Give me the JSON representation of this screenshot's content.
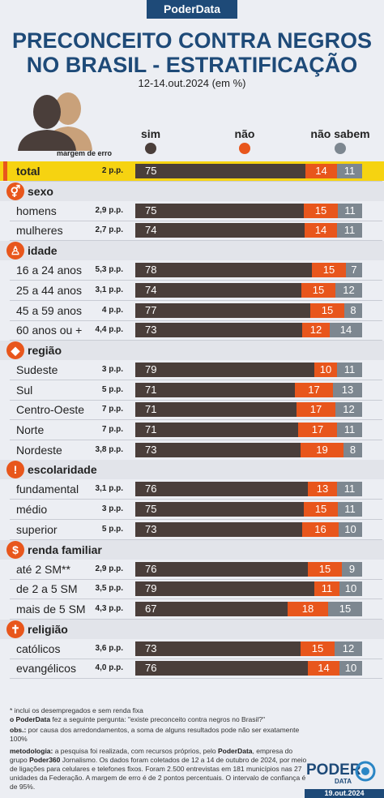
{
  "brand": "PoderData",
  "title_lines": [
    "PRECONCEITO CONTRA NEGROS",
    "NO BRASIL - ESTRATIFICAÇÃO"
  ],
  "subtitle": "12-14.out.2024 (em %)",
  "margin_header": "margem de erro",
  "colors": {
    "sim": "#4a3e3a",
    "nao": "#e8561c",
    "nao_sabem": "#7d8790",
    "navy": "#1e4a78",
    "highlight": "#f6d311"
  },
  "chart_data": {
    "type": "bar",
    "stacked": true,
    "orientation": "horizontal",
    "title": "PRECONCEITO CONTRA NEGROS NO BRASIL - ESTRATIFICAÇÃO",
    "series_names": [
      "sim",
      "não",
      "não sabem"
    ],
    "groups": [
      {
        "name": "",
        "icon": "",
        "rows": [
          {
            "label": "total",
            "margin": "2 p.p.",
            "values": [
              75,
              14,
              11
            ],
            "highlight": true
          }
        ]
      },
      {
        "name": "sexo",
        "icon": "gender-icon",
        "rows": [
          {
            "label": "homens",
            "margin": "2,9 p.p.",
            "values": [
              75,
              15,
              11
            ]
          },
          {
            "label": "mulheres",
            "margin": "2,7 p.p.",
            "values": [
              74,
              14,
              11
            ]
          }
        ]
      },
      {
        "name": "idade",
        "icon": "person-icon",
        "rows": [
          {
            "label": "16 a 24 anos",
            "margin": "5,3 p.p.",
            "values": [
              78,
              15,
              7
            ]
          },
          {
            "label": "25 a 44 anos",
            "margin": "3,1 p.p.",
            "values": [
              74,
              15,
              12
            ]
          },
          {
            "label": "45 a 59 anos",
            "margin": "4 p.p.",
            "values": [
              77,
              15,
              8
            ]
          },
          {
            "label": "60 anos ou +",
            "margin": "4,4 p.p.",
            "values": [
              73,
              12,
              14
            ]
          }
        ]
      },
      {
        "name": "região",
        "icon": "brazil-map-icon",
        "rows": [
          {
            "label": "Sudeste",
            "margin": "3 p.p.",
            "values": [
              79,
              10,
              11
            ]
          },
          {
            "label": "Sul",
            "margin": "5 p.p.",
            "values": [
              71,
              17,
              13
            ]
          },
          {
            "label": "Centro-Oeste",
            "margin": "7 p.p.",
            "values": [
              71,
              17,
              12
            ]
          },
          {
            "label": "Norte",
            "margin": "7 p.p.",
            "values": [
              71,
              17,
              11
            ]
          },
          {
            "label": "Nordeste",
            "margin": "3,8 p.p.",
            "values": [
              73,
              19,
              8
            ]
          }
        ]
      },
      {
        "name": "escolaridade",
        "icon": "exclamation-icon",
        "rows": [
          {
            "label": "fundamental",
            "margin": "3,1 p.p.",
            "values": [
              76,
              13,
              11
            ]
          },
          {
            "label": "médio",
            "margin": "3 p.p.",
            "values": [
              75,
              15,
              11
            ]
          },
          {
            "label": "superior",
            "margin": "5 p.p.",
            "values": [
              73,
              16,
              10
            ]
          }
        ]
      },
      {
        "name": "renda familiar",
        "icon": "dollar-icon",
        "rows": [
          {
            "label": "até 2 SM**",
            "margin": "2,9 p.p.",
            "values": [
              76,
              15,
              9
            ]
          },
          {
            "label": "de 2 a 5 SM",
            "margin": "3,5 p.p.",
            "values": [
              79,
              11,
              10
            ]
          },
          {
            "label": "mais de 5 SM",
            "margin": "4,3 p.p.",
            "values": [
              67,
              18,
              15
            ]
          }
        ]
      },
      {
        "name": "religião",
        "icon": "cross-icon",
        "rows": [
          {
            "label": "católicos",
            "margin": "3,6 p.p.",
            "values": [
              73,
              15,
              12
            ]
          },
          {
            "label": "evangélicos",
            "margin": "4,0 p.p.",
            "values": [
              76,
              14,
              10
            ]
          }
        ]
      }
    ]
  },
  "notes": {
    "n1": "* inclui os desempregados e sem renda fixa",
    "n2_brand": "o PoderData",
    "n2_text": " fez a seguinte pergunta: \"existe preconceito contra negros no Brasil?\"",
    "obs_label": "obs.:",
    "obs_text": " por causa dos arredondamentos, a soma de alguns resultados pode não ser exatamente 100%",
    "met_label": "metodologia:",
    "met_a": " a pesquisa foi realizada, com recursos próprios, pelo ",
    "met_brand": "PoderData",
    "met_b": ", empresa do grupo ",
    "met_brand2": "Poder360",
    "met_c": " Jornalismo. Os dados foram coletados de 12 a 14 de outubro de 2024, por meio de ligações para celulares e telefones fixos. Foram 2.500 entrevistas em 181 municípios nas 27 unidades da Federação. A margem de erro é de 2 pontos percentuais. O intervalo de confiança é de 95%."
  },
  "logo_top": "PODER",
  "logo_bottom": "DATA",
  "footer_date": "19.out.2024"
}
